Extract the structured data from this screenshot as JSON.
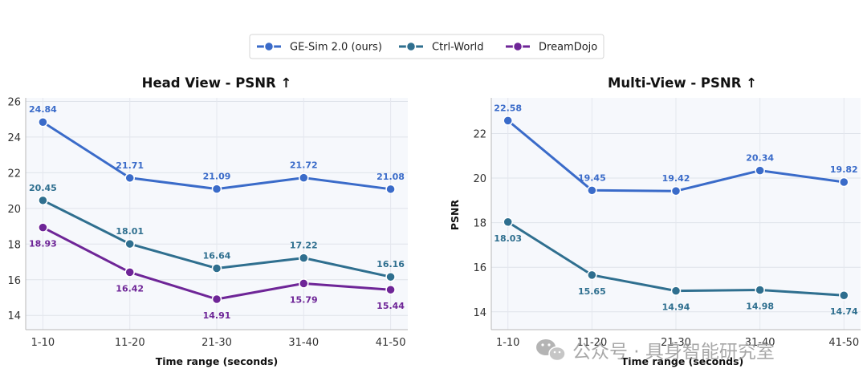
{
  "legend": {
    "placement": "top-center",
    "entries": [
      "GE-Sim 2.0 (ours)",
      "Ctrl-World",
      "DreamDojo"
    ]
  },
  "colors": {
    "GE-Sim 2.0 (ours)": "#3a6bc9",
    "Ctrl-World": "#2f6f8f",
    "DreamDojo": "#6e2597"
  },
  "watermark": {
    "icon": "wechat-icon",
    "text": "公众号 · 具身智能研究室"
  },
  "chart_data": [
    {
      "type": "line",
      "title": "Head View - PSNR ↑",
      "xlabel": "Time range (seconds)",
      "ylabel": "",
      "categories": [
        "1-10",
        "11-20",
        "21-30",
        "31-40",
        "41-50"
      ],
      "ylim": [
        13.2,
        26.2
      ],
      "yticks": [
        14,
        16,
        18,
        20,
        22,
        24,
        26
      ],
      "grid": true,
      "series": [
        {
          "name": "GE-Sim 2.0 (ours)",
          "values": [
            24.84,
            21.71,
            21.09,
            21.72,
            21.08
          ],
          "labels": [
            "24.84",
            "21.71",
            "21.09",
            "21.72",
            "21.08"
          ],
          "label_pos": [
            "above",
            "above",
            "above",
            "above",
            "above"
          ]
        },
        {
          "name": "Ctrl-World",
          "values": [
            20.45,
            18.01,
            16.64,
            17.22,
            16.16
          ],
          "labels": [
            "20.45",
            "18.01",
            "16.64",
            "17.22",
            "16.16"
          ],
          "label_pos": [
            "above",
            "above",
            "above",
            "above",
            "above"
          ]
        },
        {
          "name": "DreamDojo",
          "values": [
            18.93,
            16.42,
            14.91,
            15.79,
            15.44
          ],
          "labels": [
            "18.93",
            "16.42",
            "14.91",
            "15.79",
            "15.44"
          ],
          "label_pos": [
            "below",
            "below",
            "below",
            "below",
            "below"
          ]
        }
      ]
    },
    {
      "type": "line",
      "title": "Multi-View - PSNR ↑",
      "xlabel": "Time range (seconds)",
      "ylabel": "PSNR",
      "categories": [
        "1-10",
        "11-20",
        "21-30",
        "31-40",
        "41-50"
      ],
      "ylim": [
        13.2,
        23.6
      ],
      "yticks": [
        14,
        16,
        18,
        20,
        22
      ],
      "grid": true,
      "series": [
        {
          "name": "GE-Sim 2.0 (ours)",
          "values": [
            22.58,
            19.45,
            19.42,
            20.34,
            19.82
          ],
          "labels": [
            "22.58",
            "19.45",
            "19.42",
            "20.34",
            "19.82"
          ],
          "label_pos": [
            "above",
            "above",
            "above",
            "above",
            "above"
          ]
        },
        {
          "name": "Ctrl-World",
          "values": [
            18.03,
            15.65,
            14.94,
            14.98,
            14.74
          ],
          "labels": [
            "18.03",
            "15.65",
            "14.94",
            "14.98",
            "14.74"
          ],
          "label_pos": [
            "below",
            "below",
            "below",
            "below",
            "below"
          ]
        }
      ]
    }
  ]
}
